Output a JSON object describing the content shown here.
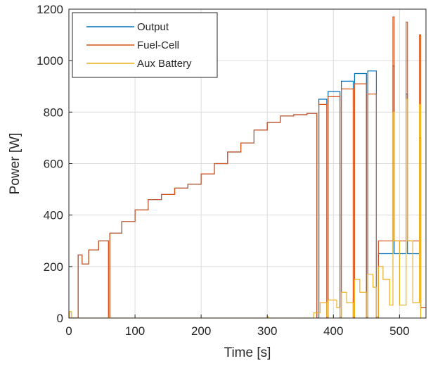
{
  "chart_data": {
    "type": "line",
    "title": "",
    "xlabel": "Time [s]",
    "ylabel": "Power [W]",
    "xlim": [
      0,
      540
    ],
    "ylim": [
      0,
      1200
    ],
    "xticks": [
      0,
      100,
      200,
      300,
      400,
      500
    ],
    "yticks": [
      0,
      200,
      400,
      600,
      800,
      1000,
      1200
    ],
    "grid": true,
    "legend_position": "top-left",
    "series": [
      {
        "name": "Output",
        "color": "#0072BD",
        "x": [
          0,
          14,
          14,
          20,
          20,
          30,
          30,
          45,
          45,
          60,
          60,
          62,
          62,
          80,
          80,
          100,
          100,
          120,
          120,
          140,
          140,
          160,
          160,
          180,
          180,
          200,
          200,
          220,
          220,
          240,
          240,
          260,
          260,
          280,
          280,
          300,
          300,
          320,
          320,
          340,
          340,
          360,
          360,
          375,
          375,
          378,
          378,
          390,
          390,
          392,
          392,
          410,
          410,
          412,
          412,
          430,
          430,
          432,
          432,
          450,
          450,
          452,
          452,
          465,
          465,
          468,
          468,
          490,
          490,
          492,
          492,
          510,
          510,
          512,
          512,
          530,
          530,
          532,
          532,
          540
        ],
        "y": [
          0,
          0,
          245,
          245,
          210,
          210,
          265,
          265,
          300,
          300,
          0,
          0,
          330,
          330,
          375,
          375,
          420,
          420,
          460,
          460,
          480,
          480,
          505,
          505,
          520,
          520,
          560,
          560,
          600,
          600,
          645,
          645,
          680,
          680,
          730,
          730,
          760,
          760,
          785,
          785,
          790,
          790,
          795,
          795,
          0,
          0,
          850,
          850,
          0,
          0,
          880,
          880,
          0,
          0,
          920,
          920,
          0,
          0,
          950,
          950,
          0,
          0,
          960,
          960,
          0,
          0,
          250,
          250,
          980,
          980,
          250,
          250,
          870,
          870,
          250,
          250,
          700,
          700,
          40,
          40
        ]
      },
      {
        "name": "Fuel-Cell",
        "color": "#D95319",
        "x": [
          0,
          14,
          14,
          20,
          20,
          30,
          30,
          45,
          45,
          60,
          60,
          62,
          62,
          80,
          80,
          100,
          100,
          120,
          120,
          140,
          140,
          160,
          160,
          180,
          180,
          200,
          200,
          220,
          220,
          240,
          240,
          260,
          260,
          280,
          280,
          300,
          300,
          320,
          320,
          340,
          340,
          360,
          360,
          375,
          375,
          378,
          378,
          390,
          390,
          392,
          392,
          410,
          410,
          412,
          412,
          430,
          430,
          432,
          432,
          450,
          450,
          452,
          452,
          465,
          465,
          468,
          468,
          490,
          490,
          492,
          492,
          510,
          510,
          512,
          512,
          530,
          530,
          532,
          532,
          540
        ],
        "y": [
          0,
          0,
          245,
          245,
          210,
          210,
          265,
          265,
          300,
          300,
          0,
          0,
          330,
          330,
          375,
          375,
          420,
          420,
          460,
          460,
          480,
          480,
          505,
          505,
          520,
          520,
          560,
          560,
          600,
          600,
          645,
          645,
          680,
          680,
          730,
          730,
          760,
          760,
          785,
          785,
          790,
          790,
          795,
          795,
          0,
          0,
          830,
          830,
          0,
          0,
          860,
          860,
          0,
          0,
          890,
          890,
          0,
          0,
          910,
          910,
          0,
          0,
          870,
          870,
          0,
          0,
          300,
          300,
          1170,
          1170,
          300,
          300,
          1150,
          1150,
          300,
          300,
          1100,
          1100,
          40,
          40
        ]
      },
      {
        "name": "Aux Battery",
        "color": "#EDB120",
        "x": [
          0,
          1,
          1,
          4,
          4,
          60,
          60,
          62,
          62,
          300,
          300,
          302,
          302,
          370,
          370,
          380,
          380,
          390,
          390,
          392,
          392,
          405,
          405,
          410,
          410,
          412,
          412,
          420,
          420,
          430,
          430,
          432,
          432,
          440,
          440,
          450,
          450,
          452,
          452,
          460,
          460,
          465,
          465,
          468,
          468,
          475,
          475,
          485,
          485,
          490,
          490,
          492,
          492,
          500,
          500,
          510,
          510,
          512,
          512,
          520,
          520,
          530,
          530,
          532,
          532,
          540
        ],
        "y": [
          0,
          0,
          25,
          25,
          0,
          0,
          2,
          2,
          0,
          0,
          5,
          5,
          0,
          0,
          20,
          20,
          60,
          60,
          5,
          5,
          70,
          70,
          40,
          40,
          5,
          5,
          100,
          100,
          60,
          60,
          5,
          5,
          150,
          150,
          100,
          100,
          5,
          5,
          170,
          170,
          120,
          120,
          5,
          5,
          200,
          200,
          150,
          150,
          50,
          50,
          800,
          800,
          300,
          300,
          50,
          50,
          850,
          850,
          300,
          300,
          60,
          60,
          830,
          830,
          0,
          0
        ]
      }
    ]
  }
}
